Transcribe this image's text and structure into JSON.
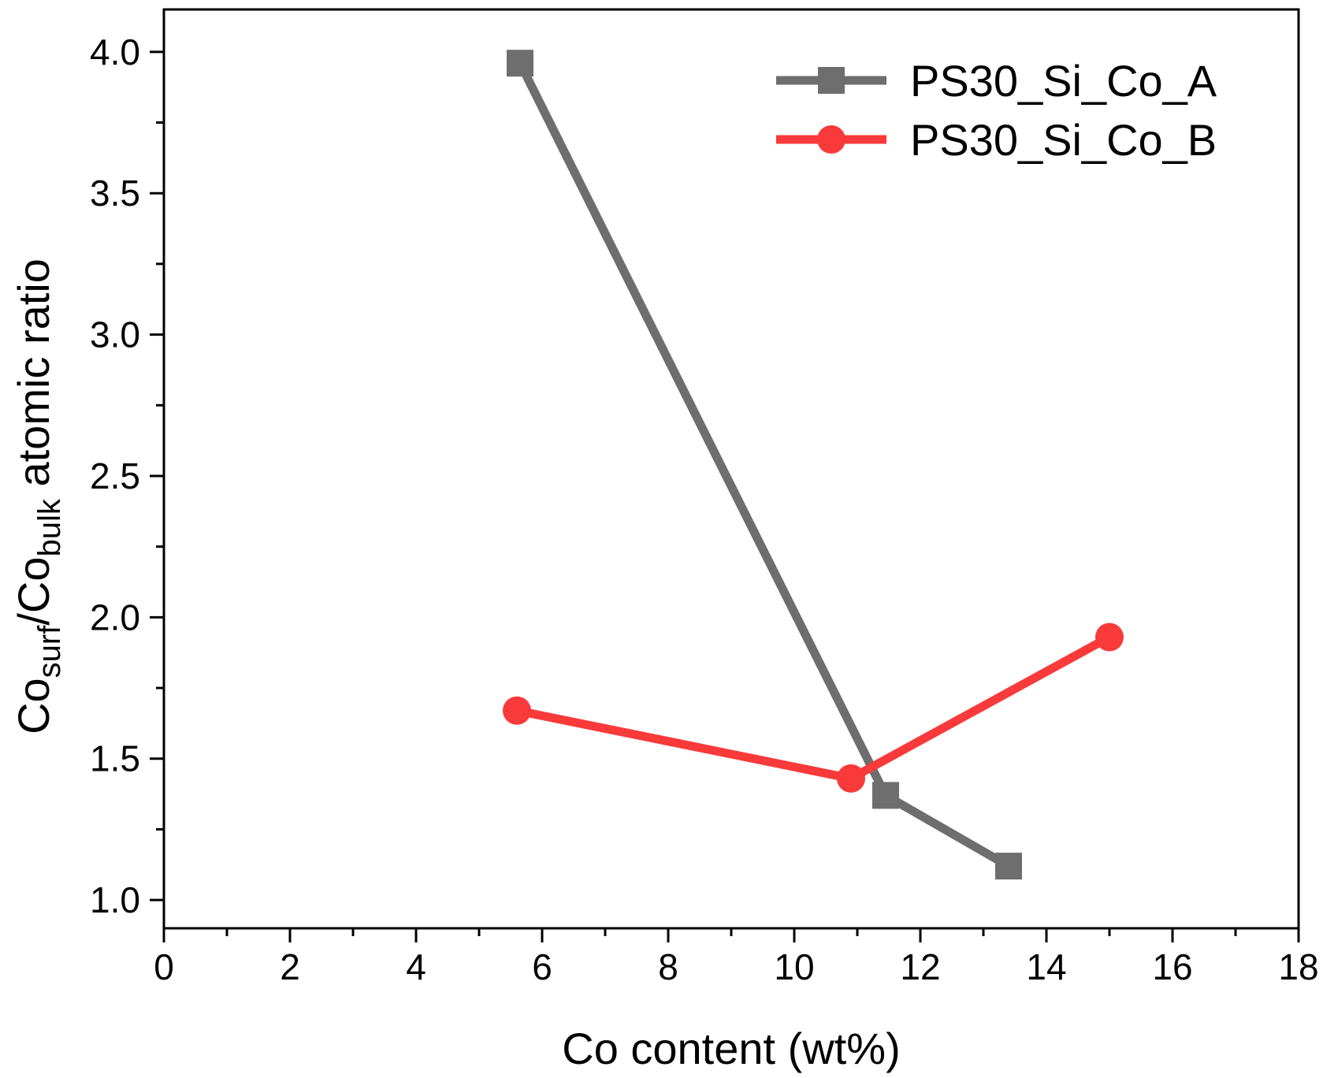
{
  "chart_data": {
    "type": "line",
    "title": "",
    "xlabel": "Co content (wt%)",
    "ylabel": {
      "prefix": "Co",
      "sub1": "surf",
      "mid": "/Co",
      "sub2": "bulk",
      "suffix": " atomic ratio"
    },
    "xlim": [
      0,
      18
    ],
    "ylim": [
      0.9,
      4.15
    ],
    "xticks": [
      0,
      2,
      4,
      6,
      8,
      10,
      12,
      14,
      16,
      18
    ],
    "xtick_labels": [
      "0",
      "2",
      "4",
      "6",
      "8",
      "10",
      "12",
      "14",
      "16",
      "18"
    ],
    "xminor": [
      1,
      3,
      5,
      7,
      9,
      11,
      13,
      15,
      17
    ],
    "yticks": [
      1.0,
      1.5,
      2.0,
      2.5,
      3.0,
      3.5,
      4.0
    ],
    "ytick_labels": [
      "1.0",
      "1.5",
      "2.0",
      "2.5",
      "3.0",
      "3.5",
      "4.0"
    ],
    "yminor": [
      1.25,
      1.75,
      2.25,
      2.75,
      3.25,
      3.75
    ],
    "grid": false,
    "legend_position": "top-right",
    "series": [
      {
        "name": "PS30_Si_Co_A",
        "marker": "square",
        "color": "#6e6e6e",
        "x": [
          5.65,
          11.45,
          13.4
        ],
        "y": [
          3.96,
          1.37,
          1.12
        ]
      },
      {
        "name": "PS30_Si_Co_B",
        "marker": "circle",
        "color": "#f93a3a",
        "x": [
          5.6,
          10.9,
          15.0
        ],
        "y": [
          1.67,
          1.43,
          1.93
        ]
      }
    ]
  }
}
